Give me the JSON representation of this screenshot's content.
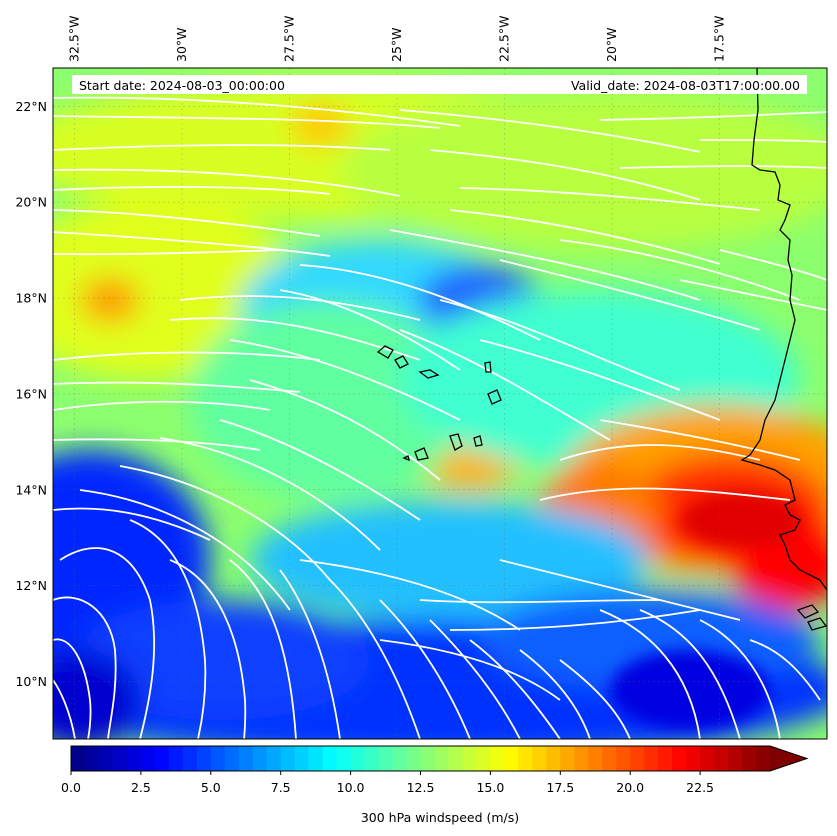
{
  "header": {
    "start_date": "Start date: 2024-08-03_00:00:00",
    "valid_date": "Valid_date: 2024-08-03T17:00:00.00"
  },
  "map": {
    "lon_range": [
      -33.0,
      -15.0
    ],
    "lat_range": [
      8.8,
      22.8
    ],
    "lon_ticks": [
      {
        "value": -32.5,
        "label": "32.5°W"
      },
      {
        "value": -30.0,
        "label": "30°W"
      },
      {
        "value": -27.5,
        "label": "27.5°W"
      },
      {
        "value": -25.0,
        "label": "25°W"
      },
      {
        "value": -22.5,
        "label": "22.5°W"
      },
      {
        "value": -20.0,
        "label": "20°W"
      },
      {
        "value": -17.5,
        "label": "17.5°W"
      }
    ],
    "lat_ticks": [
      {
        "value": 10,
        "label": "10°N"
      },
      {
        "value": 12,
        "label": "12°N"
      },
      {
        "value": 14,
        "label": "14°N"
      },
      {
        "value": 16,
        "label": "16°N"
      },
      {
        "value": 18,
        "label": "18°N"
      },
      {
        "value": 20,
        "label": "20°N"
      },
      {
        "value": 22,
        "label": "22°N"
      }
    ],
    "field": "300 hPa windspeed",
    "grid": true,
    "streamline_color": "#ffffff",
    "coastline_color": "#000000"
  },
  "colorbar": {
    "label": "300 hPa windspeed (m/s)",
    "range": [
      0,
      25
    ],
    "extend": "max",
    "colormap": "jet",
    "ticks": [
      {
        "value": 0,
        "label": "0.0"
      },
      {
        "value": 2.5,
        "label": "2.5"
      },
      {
        "value": 5,
        "label": "5.0"
      },
      {
        "value": 7.5,
        "label": "7.5"
      },
      {
        "value": 10,
        "label": "10.0"
      },
      {
        "value": 12.5,
        "label": "12.5"
      },
      {
        "value": 15,
        "label": "15.0"
      },
      {
        "value": 17.5,
        "label": "17.5"
      },
      {
        "value": 20,
        "label": "20.0"
      },
      {
        "value": 22.5,
        "label": "22.5"
      }
    ]
  }
}
